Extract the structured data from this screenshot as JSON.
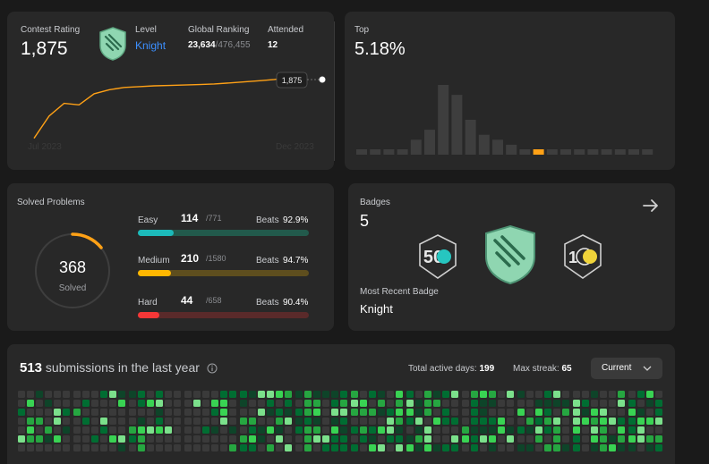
{
  "contest": {
    "rating_label": "Contest Rating",
    "rating_value": "1,875",
    "level_label": "Level",
    "level_value": "Knight",
    "global_label": "Global Ranking",
    "global_rank": "23,634",
    "global_total": "/476,455",
    "attended_label": "Attended",
    "attended_value": "12",
    "tooltip_value": "1,875",
    "x_start": "Jul 2023",
    "x_end": "Dec 2023",
    "line_color": "#ffa116",
    "rating_series": [
      1480,
      1620,
      1700,
      1690,
      1760,
      1785,
      1800,
      1805,
      1810,
      1812,
      1815,
      1818,
      1822,
      1828,
      1835,
      1842,
      1850,
      1860,
      1875
    ]
  },
  "top": {
    "label": "Top",
    "value": "5.18%",
    "distribution": [
      1,
      1,
      1,
      1,
      3,
      5,
      14,
      12,
      7,
      4,
      3,
      2,
      1,
      1,
      1,
      1,
      1,
      1,
      1,
      1,
      1,
      1
    ],
    "highlight_index": 13,
    "highlight_color": "#ffa116"
  },
  "solved": {
    "title": "Solved Problems",
    "count": "368",
    "label": "Solved",
    "beats_label": "Beats",
    "difficulties": [
      {
        "name": "Easy",
        "solved": "114",
        "total": "/771",
        "beats": "92.9%",
        "color": "#1cbaba",
        "track": "#225a4c",
        "fraction": 0.148
      },
      {
        "name": "Medium",
        "solved": "210",
        "total": "/1580",
        "beats": "94.7%",
        "color": "#ffb700",
        "track": "#5e4e1e",
        "fraction": 0.133
      },
      {
        "name": "Hard",
        "solved": "44",
        "total": "/658",
        "beats": "90.4%",
        "color": "#f63737",
        "track": "#5a2a2a",
        "fraction": 0.067
      }
    ]
  },
  "badges": {
    "label": "Badges",
    "count": "5",
    "recent_label": "Most Recent Badge",
    "recent_value": "Knight",
    "badge_50_text": "50"
  },
  "submissions": {
    "count": "513",
    "title_suffix": "submissions in the last year",
    "active_days_label": "Total active days:",
    "active_days_value": "199",
    "max_streak_label": "Max streak:",
    "max_streak_value": "65",
    "dropdown_value": "Current"
  }
}
